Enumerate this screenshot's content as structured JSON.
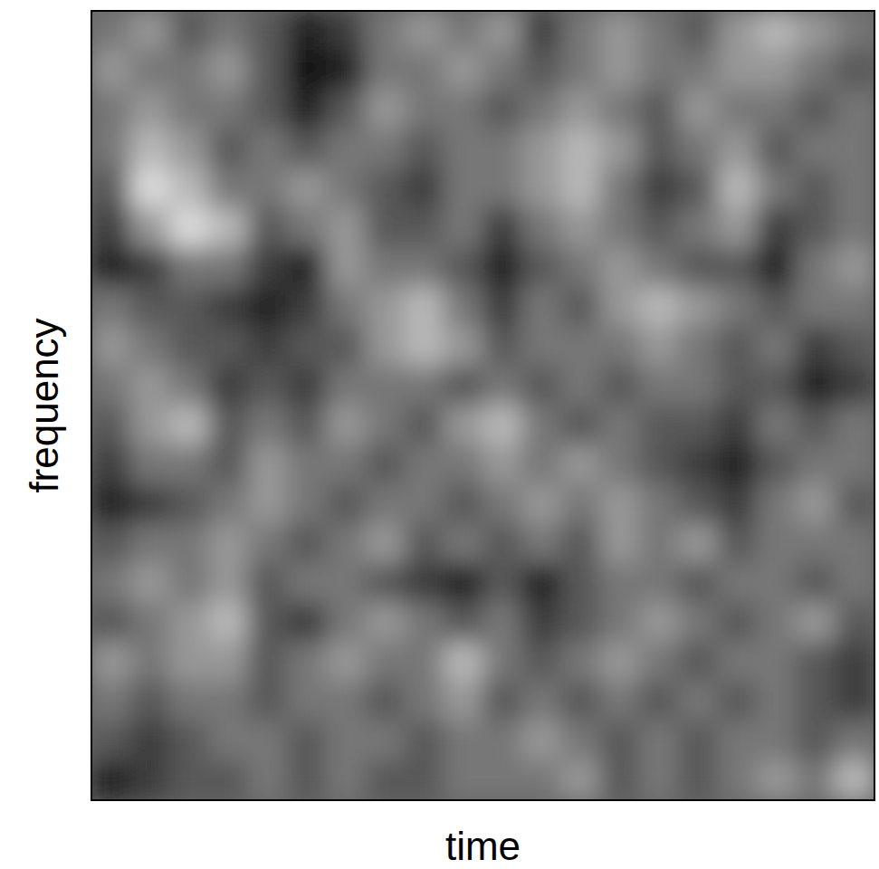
{
  "chart_data": {
    "type": "heatmap",
    "x_label": "time",
    "y_label": "frequency",
    "tick_labels": false,
    "color_range": [
      0,
      9
    ],
    "cells": [
      [
        5,
        6,
        4,
        5,
        4,
        2,
        3,
        5,
        6,
        5,
        6,
        3,
        5,
        6,
        5,
        4,
        6,
        7,
        6,
        5
      ],
      [
        6,
        5,
        5,
        6,
        4,
        1,
        2,
        5,
        5,
        6,
        5,
        4,
        5,
        6,
        5,
        5,
        6,
        6,
        5,
        4
      ],
      [
        5,
        6,
        5,
        5,
        4,
        2,
        4,
        6,
        5,
        5,
        4,
        5,
        6,
        5,
        4,
        6,
        5,
        5,
        4,
        5
      ],
      [
        5,
        7,
        6,
        4,
        5,
        4,
        5,
        5,
        4,
        5,
        5,
        6,
        7,
        6,
        4,
        5,
        6,
        4,
        5,
        5
      ],
      [
        4,
        8,
        7,
        5,
        5,
        6,
        5,
        4,
        3,
        5,
        5,
        6,
        7,
        5,
        3,
        4,
        7,
        5,
        4,
        5
      ],
      [
        3,
        6,
        8,
        7,
        4,
        5,
        6,
        4,
        4,
        5,
        3,
        5,
        6,
        5,
        4,
        5,
        6,
        3,
        4,
        5
      ],
      [
        2,
        3,
        5,
        5,
        3,
        2,
        6,
        5,
        5,
        4,
        2,
        4,
        5,
        6,
        5,
        4,
        4,
        2,
        5,
        6
      ],
      [
        5,
        4,
        4,
        3,
        2,
        3,
        5,
        6,
        7,
        5,
        3,
        5,
        4,
        6,
        7,
        6,
        5,
        4,
        5,
        5
      ],
      [
        6,
        5,
        4,
        4,
        3,
        4,
        4,
        6,
        7,
        6,
        4,
        5,
        5,
        5,
        6,
        5,
        4,
        5,
        3,
        4
      ],
      [
        5,
        6,
        5,
        3,
        4,
        3,
        5,
        5,
        5,
        4,
        5,
        4,
        5,
        4,
        5,
        5,
        4,
        4,
        2,
        3
      ],
      [
        4,
        6,
        7,
        4,
        5,
        4,
        6,
        5,
        4,
        6,
        7,
        5,
        4,
        5,
        4,
        4,
        3,
        5,
        4,
        5
      ],
      [
        3,
        5,
        5,
        4,
        6,
        5,
        5,
        4,
        5,
        5,
        6,
        5,
        6,
        5,
        4,
        3,
        2,
        4,
        5,
        5
      ],
      [
        2,
        3,
        4,
        5,
        6,
        5,
        4,
        5,
        5,
        4,
        5,
        6,
        5,
        6,
        5,
        4,
        3,
        5,
        6,
        4
      ],
      [
        4,
        5,
        5,
        6,
        5,
        4,
        5,
        6,
        4,
        5,
        4,
        5,
        4,
        6,
        5,
        6,
        4,
        5,
        5,
        5
      ],
      [
        5,
        6,
        5,
        6,
        4,
        5,
        5,
        4,
        3,
        2,
        4,
        2,
        4,
        5,
        5,
        4,
        5,
        5,
        4,
        5
      ],
      [
        4,
        5,
        6,
        7,
        4,
        3,
        5,
        6,
        5,
        4,
        5,
        3,
        4,
        5,
        6,
        5,
        4,
        5,
        6,
        4
      ],
      [
        6,
        5,
        6,
        6,
        4,
        5,
        6,
        5,
        5,
        7,
        5,
        4,
        5,
        6,
        5,
        4,
        5,
        5,
        4,
        3
      ],
      [
        5,
        4,
        5,
        5,
        4,
        5,
        5,
        4,
        5,
        6,
        4,
        5,
        4,
        5,
        4,
        5,
        4,
        5,
        4,
        3
      ],
      [
        4,
        3,
        4,
        5,
        5,
        4,
        5,
        5,
        4,
        5,
        5,
        6,
        5,
        4,
        5,
        4,
        5,
        5,
        4,
        5
      ],
      [
        2,
        3,
        4,
        4,
        5,
        4,
        5,
        4,
        4,
        5,
        5,
        5,
        6,
        4,
        5,
        4,
        5,
        6,
        5,
        7
      ]
    ]
  }
}
